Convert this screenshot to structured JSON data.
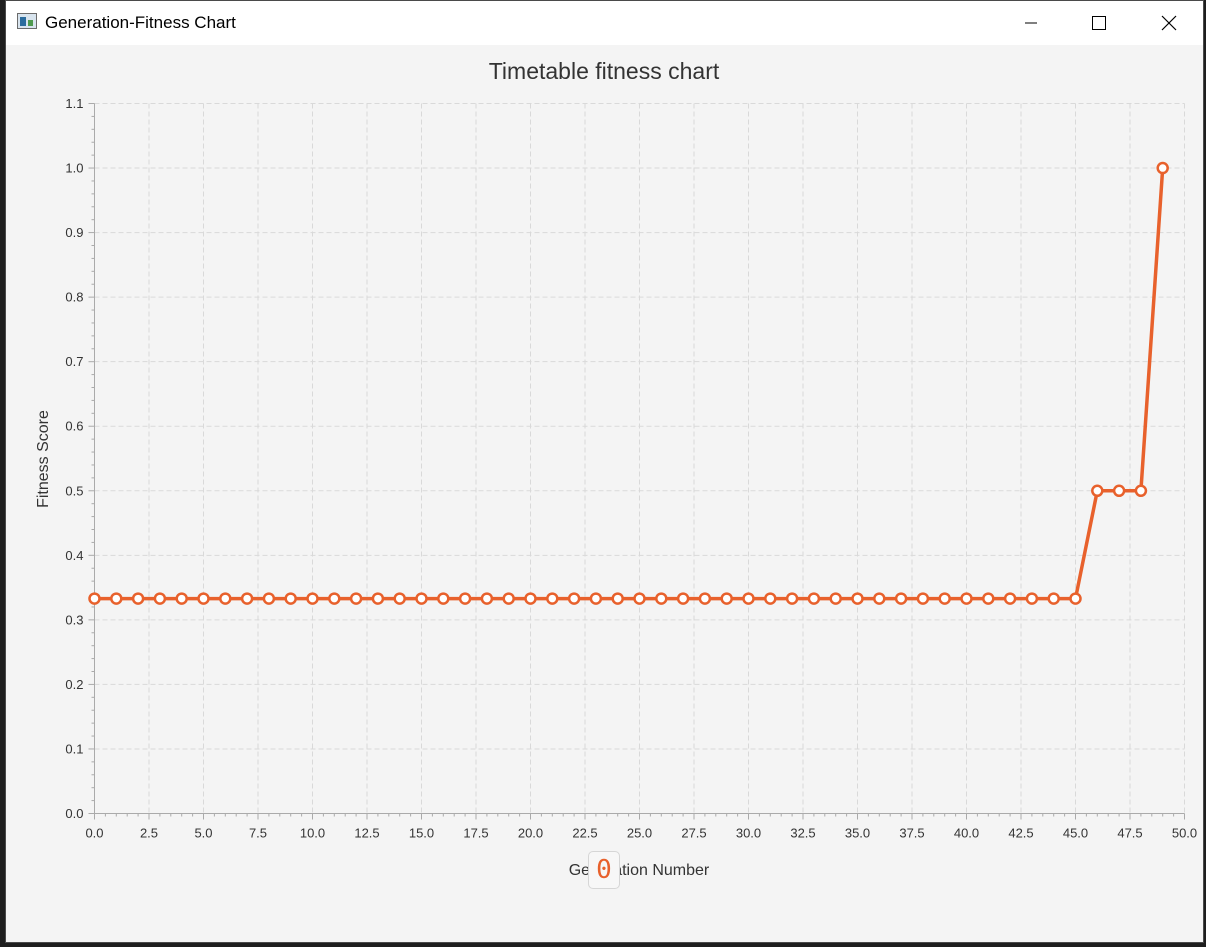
{
  "window": {
    "title": "Generation-Fitness Chart"
  },
  "icons": {
    "app": "window-app-icon",
    "minimize": "minimize-icon",
    "maximize": "maximize-icon",
    "close": "close-icon"
  },
  "colors": {
    "series": "#e8612c",
    "grid": "#d9d9d9",
    "text": "#333333"
  },
  "chart_data": {
    "type": "line",
    "title": "Timetable fitness chart",
    "xlabel": "Generation Number",
    "ylabel": "Fitness Score",
    "xlim": [
      0,
      50
    ],
    "ylim": [
      0,
      1.1
    ],
    "x_ticks": [
      "0.0",
      "2.5",
      "5.0",
      "7.5",
      "10.0",
      "12.5",
      "15.0",
      "17.5",
      "20.0",
      "22.5",
      "25.0",
      "27.5",
      "30.0",
      "32.5",
      "35.0",
      "37.5",
      "40.0",
      "42.5",
      "45.0",
      "47.5",
      "50.0"
    ],
    "y_ticks": [
      "0.0",
      "0.1",
      "0.2",
      "0.3",
      "0.4",
      "0.5",
      "0.6",
      "0.7",
      "0.8",
      "0.9",
      "1.0",
      "1.1"
    ],
    "grid": true,
    "series": [
      {
        "x": [
          0,
          1,
          2,
          3,
          4,
          5,
          6,
          7,
          8,
          9,
          10,
          11,
          12,
          13,
          14,
          15,
          16,
          17,
          18,
          19,
          20,
          21,
          22,
          23,
          24,
          25,
          26,
          27,
          28,
          29,
          30,
          31,
          32,
          33,
          34,
          35,
          36,
          37,
          38,
          39,
          40,
          41,
          42,
          43,
          44,
          45,
          46,
          47,
          48,
          49
        ],
        "values": [
          0.333,
          0.333,
          0.333,
          0.333,
          0.333,
          0.333,
          0.333,
          0.333,
          0.333,
          0.333,
          0.333,
          0.333,
          0.333,
          0.333,
          0.333,
          0.333,
          0.333,
          0.333,
          0.333,
          0.333,
          0.333,
          0.333,
          0.333,
          0.333,
          0.333,
          0.333,
          0.333,
          0.333,
          0.333,
          0.333,
          0.333,
          0.333,
          0.333,
          0.333,
          0.333,
          0.333,
          0.333,
          0.333,
          0.333,
          0.333,
          0.333,
          0.333,
          0.333,
          0.333,
          0.333,
          0.333,
          0.5,
          0.5,
          0.5,
          1.0
        ]
      }
    ]
  },
  "footer": {
    "badge_value": "0"
  }
}
